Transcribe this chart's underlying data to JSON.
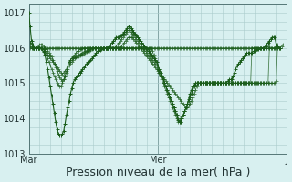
{
  "bg_color": "#d8f0f0",
  "grid_color": "#aacccc",
  "line_color": "#1a5c1a",
  "xlabel": "Pression niveau de la mer( hPa )",
  "xlabel_fontsize": 9,
  "ylim": [
    1013.0,
    1017.25
  ],
  "yticks": [
    1013,
    1014,
    1015,
    1016,
    1017
  ],
  "xtick_labels": [
    "Mar",
    "Mer",
    "J"
  ],
  "xtick_positions": [
    0,
    96,
    192
  ],
  "main_series": [
    1017.0,
    1016.6,
    1016.2,
    1016.1,
    1016.0,
    1016.0,
    1016.0,
    1016.0,
    1016.0,
    1016.0,
    1015.95,
    1015.88,
    1015.8,
    1015.6,
    1015.4,
    1015.15,
    1014.9,
    1014.65,
    1014.4,
    1014.15,
    1013.9,
    1013.7,
    1013.55,
    1013.5,
    1013.5,
    1013.55,
    1013.65,
    1013.85,
    1014.1,
    1014.3,
    1014.5,
    1014.7,
    1014.85,
    1015.0,
    1015.1,
    1015.15,
    1015.2,
    1015.25,
    1015.3,
    1015.35,
    1015.4,
    1015.45,
    1015.5,
    1015.55,
    1015.6,
    1015.62,
    1015.64,
    1015.7,
    1015.75,
    1015.8,
    1015.85,
    1015.9,
    1015.92,
    1015.94,
    1015.96,
    1015.98,
    1016.0,
    1016.0,
    1016.0,
    1016.0,
    1016.05,
    1016.1,
    1016.15,
    1016.2,
    1016.25,
    1016.3,
    1016.3,
    1016.3,
    1016.35,
    1016.35,
    1016.4,
    1016.45,
    1016.5,
    1016.55,
    1016.6,
    1016.6,
    1016.55,
    1016.5,
    1016.45,
    1016.4,
    1016.35,
    1016.3,
    1016.25,
    1016.2,
    1016.15,
    1016.1,
    1016.05,
    1016.0,
    1015.95,
    1015.9,
    1015.85,
    1015.8,
    1015.75,
    1015.7,
    1015.65,
    1015.6,
    1015.5,
    1015.4,
    1015.3,
    1015.2,
    1015.1,
    1015.0,
    1014.9,
    1014.8,
    1014.7,
    1014.6,
    1014.5,
    1014.4,
    1014.3,
    1014.2,
    1014.1,
    1013.95,
    1013.9,
    1013.9,
    1014.0,
    1014.1,
    1014.2,
    1014.3,
    1014.4,
    1014.55,
    1014.7,
    1014.8,
    1014.9,
    1014.95,
    1015.0,
    1015.0,
    1015.0,
    1015.0,
    1015.0,
    1015.0,
    1015.0,
    1015.0,
    1015.0,
    1015.0,
    1015.0,
    1015.0,
    1015.0,
    1015.0,
    1015.0,
    1015.0,
    1015.0,
    1015.0,
    1015.0,
    1015.0,
    1015.0,
    1015.0,
    1015.0,
    1015.0,
    1015.05,
    1015.1,
    1015.1,
    1015.1,
    1015.2,
    1015.3,
    1015.4,
    1015.5,
    1015.55,
    1015.6,
    1015.65,
    1015.7,
    1015.75,
    1015.8,
    1015.85,
    1015.85,
    1015.85,
    1015.85,
    1015.85,
    1015.9,
    1015.9,
    1015.95,
    1015.95,
    1015.95,
    1016.0,
    1016.0,
    1016.0,
    1016.0,
    1016.05,
    1016.1,
    1016.15,
    1016.2,
    1016.25,
    1016.3,
    1016.3,
    1016.3,
    1016.1,
    1016.05,
    1016.0,
    1016.0
  ],
  "extra_series": [
    [
      1016.2,
      1016.15,
      1016.1,
      1016.05,
      1016.0,
      1016.0,
      1016.0,
      1016.0,
      1016.0,
      1016.0,
      1016.0,
      1015.95,
      1015.9,
      1015.8,
      1015.7,
      1015.6,
      1015.5,
      1015.4,
      1015.3,
      1015.2,
      1015.1,
      1015.0,
      1014.95,
      1014.9,
      1014.9,
      1015.0,
      1015.1,
      1015.2,
      1015.35,
      1015.5,
      1015.6,
      1015.65,
      1015.7,
      1015.75,
      1015.8,
      1015.85,
      1015.9,
      1015.9,
      1015.95,
      1015.95,
      1016.0,
      1016.0,
      1016.0,
      1016.0,
      1016.0,
      1016.0,
      1016.0,
      1016.0,
      1016.0,
      1016.0,
      1016.0,
      1016.0,
      1016.0,
      1016.0,
      1016.0,
      1016.0,
      1016.0,
      1016.0,
      1016.0,
      1016.0,
      1016.0,
      1016.0,
      1016.0,
      1016.0,
      1016.0,
      1016.0,
      1016.0,
      1016.0,
      1016.0,
      1016.05,
      1016.1,
      1016.15,
      1016.2,
      1016.25,
      1016.3,
      1016.3,
      1016.3,
      1016.3,
      1016.25,
      1016.2,
      1016.15,
      1016.1,
      1016.05,
      1016.0,
      1015.95,
      1015.9,
      1015.85,
      1015.8,
      1015.75,
      1015.7,
      1015.65,
      1015.6,
      1015.55,
      1015.5,
      1015.45,
      1015.4,
      1015.35,
      1015.3,
      1015.25,
      1015.2,
      1015.15,
      1015.1,
      1015.05,
      1015.0,
      1014.95,
      1014.9,
      1014.85,
      1014.8,
      1014.75,
      1014.7,
      1014.65,
      1014.6,
      1014.55,
      1014.5,
      1014.45,
      1014.4,
      1014.35,
      1014.3,
      1014.3,
      1014.35,
      1014.4,
      1014.5,
      1014.6,
      1014.7,
      1014.8,
      1014.9,
      1015.0,
      1015.0,
      1015.0,
      1015.0,
      1015.0,
      1015.0,
      1015.0,
      1015.0,
      1015.0,
      1015.0,
      1015.0,
      1015.0,
      1015.0,
      1015.0,
      1015.0,
      1015.0,
      1015.0,
      1015.0,
      1015.0,
      1015.0,
      1015.0,
      1015.0,
      1015.0,
      1015.0,
      1015.0,
      1015.0,
      1015.0,
      1015.0,
      1015.0,
      1015.0,
      1015.0,
      1015.0,
      1015.0,
      1015.0,
      1015.0,
      1015.0,
      1015.0,
      1015.0,
      1015.0,
      1015.0,
      1015.0,
      1015.0,
      1015.0,
      1015.0,
      1015.0,
      1015.0,
      1015.0,
      1015.0,
      1015.0,
      1015.0,
      1015.0,
      1015.0,
      1015.0,
      1016.0,
      1016.0,
      1016.0,
      1016.0,
      1016.0,
      1016.05,
      1016.1
    ],
    [
      1016.1,
      1016.05,
      1016.0,
      1016.0,
      1016.0,
      1016.0,
      1016.0,
      1016.0,
      1016.0,
      1016.0,
      1016.0,
      1016.0,
      1016.0,
      1016.0,
      1016.0,
      1016.0,
      1016.0,
      1016.0,
      1016.0,
      1016.0,
      1016.0,
      1016.0,
      1016.0,
      1016.0,
      1016.0,
      1016.0,
      1016.0,
      1016.0,
      1016.0,
      1016.0,
      1016.0,
      1016.0,
      1016.0,
      1016.0,
      1016.0,
      1016.0,
      1016.0,
      1016.0,
      1016.0,
      1016.0,
      1016.0,
      1016.0,
      1016.0,
      1016.0,
      1016.0,
      1016.0,
      1016.0,
      1016.0,
      1016.0,
      1016.0,
      1016.0,
      1016.0,
      1016.0,
      1016.0,
      1016.0,
      1016.0,
      1016.0,
      1016.0,
      1016.0,
      1016.0,
      1016.0,
      1016.0,
      1016.0,
      1016.0,
      1016.0,
      1016.0,
      1016.0,
      1016.0,
      1016.0,
      1016.0,
      1016.0,
      1016.0,
      1016.0,
      1016.0,
      1016.0,
      1016.0,
      1016.0,
      1016.0,
      1016.0,
      1016.0,
      1016.0,
      1016.0,
      1016.0,
      1016.0,
      1016.0,
      1016.0,
      1016.0,
      1016.0,
      1016.0,
      1016.0,
      1016.0,
      1016.0,
      1016.0,
      1016.0,
      1016.0,
      1016.0,
      1016.0,
      1016.0,
      1016.0,
      1016.0,
      1016.0,
      1016.0,
      1016.0,
      1016.0,
      1016.0,
      1016.0,
      1016.0,
      1016.0,
      1016.0,
      1016.0,
      1016.0,
      1016.0,
      1016.0,
      1016.0,
      1016.0,
      1016.0,
      1016.0,
      1016.0,
      1016.0,
      1016.0,
      1016.0,
      1016.0,
      1016.0,
      1016.0,
      1016.0,
      1016.0,
      1016.0,
      1016.0,
      1016.0,
      1016.0,
      1016.0,
      1016.0,
      1016.0,
      1016.0,
      1016.0,
      1016.0,
      1016.0,
      1016.0,
      1016.0,
      1016.0,
      1016.0,
      1016.0,
      1016.0,
      1016.0,
      1016.0,
      1016.0,
      1016.0,
      1016.0,
      1016.0,
      1016.0,
      1016.0,
      1016.0,
      1016.0,
      1016.0,
      1016.0,
      1016.0,
      1016.0,
      1016.0,
      1016.0,
      1016.0,
      1016.0,
      1016.0,
      1016.0,
      1016.0,
      1016.0,
      1016.0,
      1016.0,
      1016.0,
      1016.0,
      1016.0,
      1016.0,
      1016.0,
      1016.0,
      1016.0,
      1016.0,
      1016.0,
      1016.0,
      1016.0,
      1016.0,
      1016.0,
      1016.0,
      1016.0,
      1016.0,
      1016.0,
      1016.0,
      1016.0,
      1016.0,
      1016.0,
      1016.05,
      1016.1
    ],
    [
      1016.05,
      1016.0,
      1016.0,
      1016.0,
      1016.0,
      1016.0,
      1016.0,
      1016.0,
      1016.0,
      1016.0,
      1016.0,
      1015.95,
      1015.9,
      1015.85,
      1015.8,
      1015.75,
      1015.7,
      1015.65,
      1015.6,
      1015.55,
      1015.5,
      1015.45,
      1015.4,
      1015.35,
      1015.3,
      1015.25,
      1015.3,
      1015.35,
      1015.4,
      1015.5,
      1015.6,
      1015.65,
      1015.7,
      1015.72,
      1015.74,
      1015.76,
      1015.78,
      1015.8,
      1015.82,
      1015.84,
      1015.86,
      1015.88,
      1015.9,
      1015.92,
      1015.94,
      1015.96,
      1015.98,
      1016.0,
      1016.0,
      1016.0,
      1016.0,
      1016.0,
      1016.0,
      1016.0,
      1016.0,
      1016.0,
      1016.0,
      1016.0,
      1016.0,
      1016.0,
      1016.0,
      1016.0,
      1016.0,
      1016.0,
      1016.0,
      1016.0,
      1016.0,
      1016.0,
      1016.0,
      1016.0,
      1016.0,
      1016.0,
      1016.0,
      1016.0,
      1016.0,
      1016.0,
      1016.0,
      1016.0,
      1016.0,
      1016.0,
      1016.0,
      1016.0,
      1016.0,
      1016.0,
      1016.0,
      1016.0,
      1016.0,
      1016.0,
      1016.0,
      1016.0,
      1016.0,
      1016.0,
      1015.9,
      1015.8,
      1015.7,
      1015.6,
      1015.5,
      1015.4,
      1015.3,
      1015.2,
      1015.1,
      1015.0,
      1014.9,
      1014.8,
      1014.7,
      1014.6,
      1014.5,
      1014.4,
      1014.3,
      1014.2,
      1014.1,
      1014.0,
      1013.9,
      1013.9,
      1014.0,
      1014.1,
      1014.2,
      1014.3,
      1014.4,
      1014.5,
      1014.6,
      1014.7,
      1014.8,
      1014.9,
      1014.95,
      1015.0,
      1015.0,
      1015.0,
      1015.0,
      1015.0,
      1015.0,
      1015.0,
      1015.0,
      1015.0,
      1015.0,
      1015.0,
      1015.0,
      1015.0,
      1015.0,
      1015.0,
      1015.0,
      1015.0,
      1015.0,
      1015.0,
      1015.0,
      1015.0,
      1015.0,
      1015.0,
      1015.0,
      1015.0,
      1015.0,
      1015.0,
      1015.0,
      1015.0,
      1015.0,
      1015.0,
      1015.0,
      1015.0,
      1015.0,
      1015.0,
      1015.0,
      1015.0,
      1015.0,
      1015.0,
      1015.0,
      1015.0,
      1015.0,
      1015.0,
      1015.0,
      1015.0,
      1015.0,
      1015.0,
      1015.0,
      1015.0,
      1015.0,
      1015.0,
      1015.0,
      1015.0,
      1015.0,
      1015.0,
      1015.0,
      1015.0,
      1015.0,
      1015.0,
      1015.05,
      1016.0
    ],
    [
      1016.2,
      1016.15,
      1016.1,
      1016.0,
      1016.0,
      1016.0,
      1016.0,
      1016.05,
      1016.1,
      1016.1,
      1016.1,
      1016.05,
      1016.0,
      1015.95,
      1015.9,
      1015.85,
      1015.8,
      1015.75,
      1015.65,
      1015.55,
      1015.45,
      1015.35,
      1015.25,
      1015.15,
      1015.1,
      1015.05,
      1015.1,
      1015.2,
      1015.3,
      1015.4,
      1015.5,
      1015.55,
      1015.6,
      1015.65,
      1015.7,
      1015.72,
      1015.74,
      1015.76,
      1015.78,
      1015.8,
      1015.82,
      1015.84,
      1015.86,
      1015.88,
      1015.9,
      1015.92,
      1015.94,
      1015.96,
      1015.98,
      1016.0,
      1016.0,
      1016.0,
      1016.0,
      1016.0,
      1016.0,
      1016.0,
      1016.0,
      1016.0,
      1016.0,
      1016.0,
      1016.0,
      1016.0,
      1016.0,
      1016.0,
      1016.0,
      1016.05,
      1016.1,
      1016.15,
      1016.2,
      1016.25,
      1016.3,
      1016.35,
      1016.4,
      1016.45,
      1016.5,
      1016.5,
      1016.45,
      1016.4,
      1016.35,
      1016.3,
      1016.25,
      1016.2,
      1016.15,
      1016.1,
      1016.05,
      1016.0,
      1015.95,
      1015.9,
      1015.85,
      1015.8,
      1015.75,
      1015.7,
      1015.65,
      1015.6,
      1015.55,
      1015.5,
      1015.4,
      1015.3,
      1015.2,
      1015.1,
      1015.0,
      1014.9,
      1014.8,
      1014.7,
      1014.6,
      1014.5,
      1014.4,
      1014.3,
      1014.2,
      1014.1,
      1014.0,
      1013.9,
      1013.95,
      1014.0,
      1014.05,
      1014.1,
      1014.2,
      1014.3,
      1014.4,
      1014.5,
      1014.6,
      1014.7,
      1014.8,
      1014.9,
      1015.0,
      1015.0,
      1015.0,
      1015.0,
      1015.0,
      1015.0,
      1015.0,
      1015.0,
      1015.0,
      1015.0,
      1015.0,
      1015.0,
      1015.0,
      1015.0,
      1015.0,
      1015.0,
      1015.0,
      1015.0,
      1015.0,
      1015.0,
      1015.0,
      1015.0,
      1015.0,
      1015.0,
      1015.0,
      1015.0,
      1015.0,
      1015.0,
      1015.0,
      1015.0,
      1015.0,
      1015.0,
      1015.0,
      1015.0,
      1015.0,
      1015.0,
      1015.0,
      1015.0,
      1015.0,
      1015.0,
      1015.0,
      1015.0,
      1016.0,
      1016.0,
      1016.0,
      1016.0,
      1016.0,
      1016.0,
      1016.0,
      1016.0,
      1016.0,
      1016.0,
      1016.0,
      1016.0,
      1016.05,
      1016.1
    ]
  ]
}
